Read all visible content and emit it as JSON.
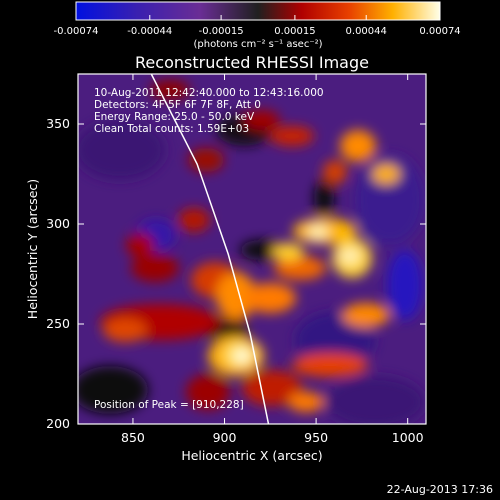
{
  "chart_data": {
    "type": "heatmap",
    "title": "Reconstructed RHESSI Image",
    "xlabel": "Heliocentric X (arcsec)",
    "ylabel": "Heliocentric Y (arcsec)",
    "xlim": [
      820,
      1010
    ],
    "ylim": [
      200,
      375
    ],
    "x_ticks": [
      850,
      900,
      950,
      1000
    ],
    "y_ticks": [
      200,
      250,
      300,
      350
    ],
    "x_tick_labels": [
      "850",
      "900",
      "950",
      "1000"
    ],
    "y_tick_labels": [
      "200",
      "250",
      "300",
      "350"
    ],
    "colorbar": {
      "range": [
        -0.00074,
        0.00074
      ],
      "ticks": [
        -0.00074,
        -0.00044,
        -0.00015,
        0.00015,
        0.00044,
        0.00074
      ],
      "tick_labels": [
        "-0.00074",
        "-0.00044",
        "-0.00015",
        "0.00015",
        "0.00044",
        "0.00074"
      ],
      "units_label": "(photons cm⁻² s⁻¹ asec⁻²)"
    },
    "annotations": [
      "10-Aug-2011 12:42:40.000 to 12:43:16.000",
      "Detectors: 4F 5F 6F 7F 8F, Att 0",
      "Energy Range: 25.0 - 50.0 keV",
      "Clean    Total counts: 1.59E+03"
    ],
    "peak_label": "Position of Peak = [910,228]",
    "peak": [
      910,
      228
    ],
    "limb_curve": [
      [
        860,
        375
      ],
      [
        885,
        330
      ],
      [
        902,
        285
      ],
      [
        914,
        245
      ],
      [
        924,
        200
      ]
    ],
    "grid": false,
    "legend": "none"
  },
  "footer": {
    "date": "22-Aug-2013 17:36"
  }
}
